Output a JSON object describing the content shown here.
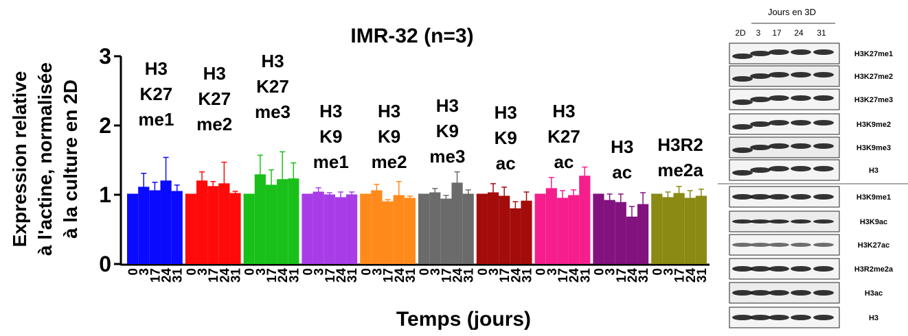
{
  "chart_data": {
    "type": "grouped-bar",
    "title": "IMR-32 (n=3)",
    "y_label": [
      "Expression relative",
      "à l'actine, normalisée",
      "à la culture en 2D"
    ],
    "x_label": "Temps (jours)",
    "categories": [
      "0",
      "3",
      "17",
      "24",
      "31"
    ],
    "ylim": [
      0,
      3
    ],
    "yticks": [
      0,
      1,
      2,
      3
    ],
    "series": [
      {
        "label": [
          "H3",
          "K27",
          "me1"
        ],
        "color": "#0a0aff",
        "values": [
          1.0,
          1.1,
          1.05,
          1.19,
          1.04
        ],
        "errors": [
          0,
          0.21,
          0.13,
          0.35,
          0.1
        ]
      },
      {
        "label": [
          "H3",
          "K27",
          "me2"
        ],
        "color": "#ff0a0a",
        "values": [
          1.0,
          1.19,
          1.11,
          1.15,
          1.01
        ],
        "errors": [
          0,
          0.14,
          0.08,
          0.32,
          0.04
        ]
      },
      {
        "label": [
          "H3",
          "K27",
          "me3"
        ],
        "color": "#19c019",
        "values": [
          1.0,
          1.28,
          1.13,
          1.21,
          1.22
        ],
        "errors": [
          0,
          0.29,
          0.23,
          0.41,
          0.24
        ]
      },
      {
        "label": [
          "H3",
          "K9",
          "me1"
        ],
        "color": "#a83de8",
        "values": [
          1.0,
          1.03,
          0.99,
          0.95,
          0.99
        ],
        "errors": [
          0,
          0.07,
          0.04,
          0.09,
          0.05
        ]
      },
      {
        "label": [
          "H3",
          "K9",
          "me2"
        ],
        "color": "#ff8a1c",
        "values": [
          1.0,
          1.05,
          0.89,
          0.98,
          0.94
        ],
        "errors": [
          0,
          0.1,
          0.04,
          0.21,
          0.04
        ]
      },
      {
        "label": [
          "H3",
          "K9",
          "me3"
        ],
        "color": "#6b6b6b",
        "values": [
          1.0,
          1.02,
          0.93,
          1.16,
          1.0
        ],
        "errors": [
          0,
          0.07,
          0.06,
          0.17,
          0.07
        ]
      },
      {
        "label": [
          "H3",
          "K9",
          "ac"
        ],
        "color": "#a40c0c",
        "values": [
          1.0,
          1.02,
          0.97,
          0.79,
          0.9
        ],
        "errors": [
          0,
          0.14,
          0.14,
          0.11,
          0.14
        ]
      },
      {
        "label": [
          "H3",
          "K27",
          "ac"
        ],
        "color": "#f51e8c",
        "values": [
          1.0,
          1.08,
          0.94,
          0.98,
          1.26
        ],
        "errors": [
          0,
          0.17,
          0.12,
          0.09,
          0.14
        ]
      },
      {
        "label": [
          "H3",
          "ac"
        ],
        "color": "#82127e",
        "values": [
          1.0,
          0.91,
          0.88,
          0.67,
          0.85
        ],
        "errors": [
          0,
          0.1,
          0.13,
          0.16,
          0.18
        ]
      },
      {
        "label": [
          "H3R2",
          "me2a"
        ],
        "color": "#8a8a14",
        "values": [
          1.0,
          0.95,
          1.01,
          0.94,
          0.97
        ],
        "errors": [
          0,
          0.09,
          0.11,
          0.12,
          0.11
        ]
      }
    ]
  },
  "blot": {
    "header": "Jours en 3D",
    "lanes": [
      "2D",
      "3",
      "17",
      "24",
      "31"
    ],
    "rows": [
      "H3K27me1",
      "H3K27me2",
      "H3K27me3",
      "H3K9me2",
      "H3K9me3",
      "H3",
      "H3K9me1",
      "H3K9ac",
      "H3K27ac",
      "H3R2me2a",
      "H3ac",
      "H3"
    ]
  }
}
